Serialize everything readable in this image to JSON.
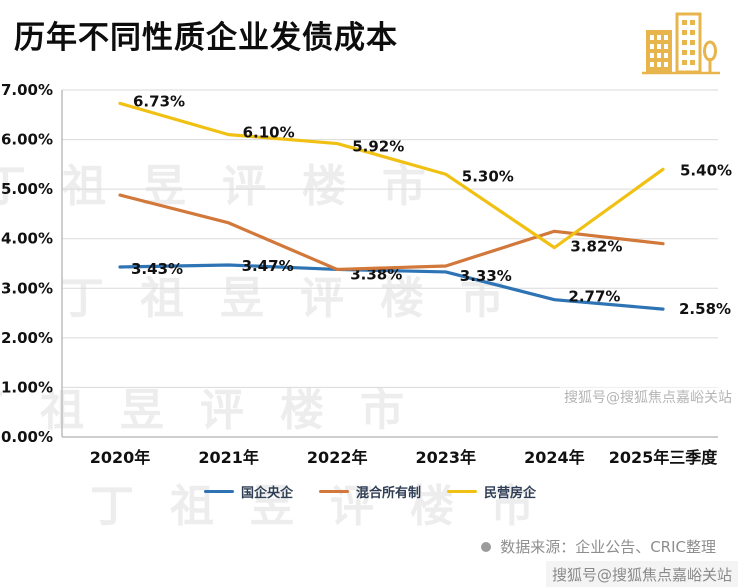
{
  "header": {
    "title": "历年不同性质企业发债成本"
  },
  "chart_data": {
    "type": "line",
    "categories": [
      "2020年",
      "2021年",
      "2022年",
      "2023年",
      "2024年",
      "2025年三季度"
    ],
    "series": [
      {
        "name": "国企央企",
        "color": "#2e74b5",
        "values": [
          3.43,
          3.47,
          3.38,
          3.33,
          2.77,
          2.58
        ],
        "labels": [
          "3.43%",
          "3.47%",
          "3.38%",
          "3.33%",
          "2.77%",
          "2.58%"
        ]
      },
      {
        "name": "混合所有制",
        "color": "#d1783a",
        "values": [
          4.88,
          4.32,
          3.38,
          3.45,
          4.15,
          3.9
        ],
        "labels": []
      },
      {
        "name": "民营房企",
        "color": "#f0c113",
        "values": [
          6.73,
          6.1,
          5.92,
          5.3,
          3.82,
          5.4
        ],
        "labels": [
          "6.73%",
          "6.10%",
          "5.92%",
          "5.30%",
          "3.82%",
          "5.40%"
        ]
      }
    ],
    "ylim": [
      0,
      7
    ],
    "yticks": [
      "0.00%",
      "1.00%",
      "2.00%",
      "3.00%",
      "4.00%",
      "5.00%",
      "6.00%",
      "7.00%"
    ],
    "grid": true,
    "legend_position": "bottom"
  },
  "footer": {
    "source": "数据来源：企业公告、CRIC整理"
  },
  "watermarks": {
    "bg_text": "丁祖昱评楼市",
    "sohu_mid": "搜狐号@搜狐焦点嘉峪关站",
    "sohu_bottom": "搜狐号@搜狐焦点嘉峪关站"
  }
}
